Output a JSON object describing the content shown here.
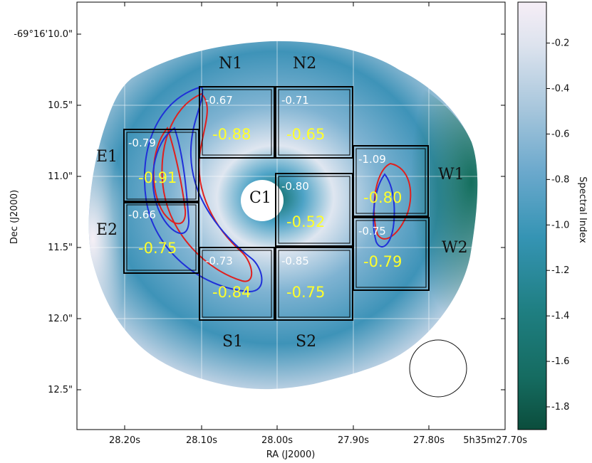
{
  "chart_data": {
    "type": "heatmap",
    "title": "",
    "xlabel": "RA (J2000)",
    "ylabel": "Dec (J2000)",
    "x_ticks": [
      "28.20s",
      "28.10s",
      "28.00s",
      "27.90s",
      "27.80s",
      "5h35m27.70s"
    ],
    "y_ticks": [
      "-69°16'10.0\"",
      "10.5\"",
      "11.0\"",
      "11.5\"",
      "12.0\"",
      "12.5\""
    ],
    "colorbar": {
      "label": "Spectral Index",
      "range": [
        -1.9,
        -0.02
      ],
      "ticks": [
        "-0.2",
        "-0.4",
        "-0.6",
        "-0.8",
        "-1.0",
        "-1.2",
        "-1.4",
        "-1.6",
        "-1.8"
      ],
      "colors": [
        "#0b4d3c",
        "#1f7f82",
        "#3594b4",
        "#6aa8cc",
        "#a7c6dc",
        "#dde3ee",
        "#f6eef6"
      ]
    },
    "center_label": "C1",
    "grid": true,
    "regions": [
      {
        "name": "N1",
        "small_value": "-0.67",
        "large_value": "-0.88"
      },
      {
        "name": "N2",
        "small_value": "-0.71",
        "large_value": "-0.65"
      },
      {
        "name": "E1",
        "small_value": "-0.79",
        "large_value": "-0.91"
      },
      {
        "name": "E2",
        "small_value": "-0.66",
        "large_value": "-0.75"
      },
      {
        "name": "S1",
        "small_value": "-0.73",
        "large_value": "-0.84"
      },
      {
        "name": "S2",
        "small_value": "-0.85",
        "large_value": "-0.75"
      },
      {
        "name": "W1",
        "small_value": "-1.09",
        "large_value": "-0.80"
      },
      {
        "name": "W2",
        "small_value": "-0.75",
        "large_value": "-0.79"
      }
    ],
    "inner_box": {
      "small_value": "-0.80",
      "large_value": "-0.52"
    },
    "contour_colors": [
      "#e0201e",
      "#2030d8"
    ]
  }
}
